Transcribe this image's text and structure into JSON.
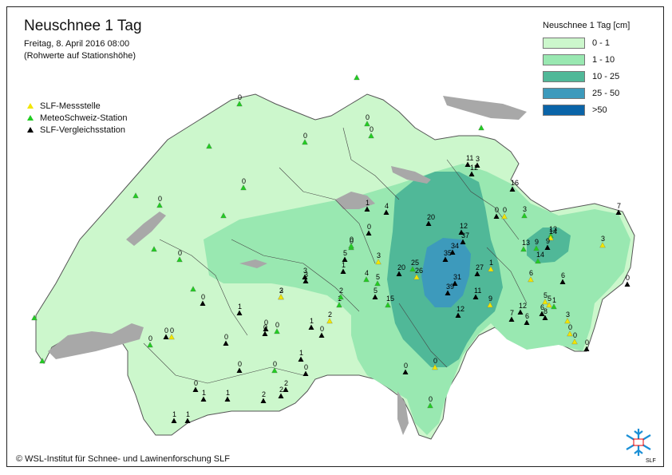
{
  "header": {
    "title": "Neuschnee 1 Tag",
    "date": "Freitag, 8. April 2016 08:00",
    "note": "(Rohwerte auf Stationshöhe)"
  },
  "station_legend": [
    {
      "label": "SLF-Messstelle",
      "color": "#f2e600"
    },
    {
      "label": "MeteoSchweiz-Station",
      "color": "#22cc22"
    },
    {
      "label": "SLF-Vergleichsstation",
      "color": "#000000"
    }
  ],
  "legend": {
    "title": "Neuschnee 1 Tag [cm]",
    "classes": [
      {
        "label": "0 - 1",
        "color": "#ccf7cc"
      },
      {
        "label": "1 - 10",
        "color": "#99e8b1"
      },
      {
        "label": "10 - 25",
        "color": "#50b898"
      },
      {
        "label": "25 - 50",
        "color": "#3d9abc"
      },
      {
        "label": ">50",
        "color": "#0a64a8"
      }
    ]
  },
  "colors": {
    "lake": "#a8a8a8",
    "border": "#444444",
    "frame": "#222222"
  },
  "stations": [
    {
      "t": "g",
      "v": "0"
    },
    {
      "t": "g",
      "v": ""
    },
    {
      "t": "g",
      "v": "0"
    },
    {
      "t": "g",
      "v": "0"
    },
    {
      "t": "g",
      "v": ""
    },
    {
      "t": "g",
      "v": ""
    },
    {
      "t": "g",
      "v": "0"
    },
    {
      "t": "g",
      "v": ""
    },
    {
      "t": "g",
      "v": "0"
    },
    {
      "t": "g",
      "v": ""
    },
    {
      "t": "g",
      "v": ""
    },
    {
      "t": "g",
      "v": "0"
    },
    {
      "t": "g",
      "v": ""
    },
    {
      "t": "g",
      "v": ""
    },
    {
      "t": "g",
      "v": ""
    },
    {
      "t": "g",
      "v": "0"
    },
    {
      "t": "b",
      "v": "11"
    },
    {
      "t": "b",
      "v": "3"
    },
    {
      "t": "b",
      "v": "12"
    },
    {
      "t": "b",
      "v": "16"
    },
    {
      "t": "b",
      "v": "7"
    },
    {
      "t": "b",
      "v": "0"
    },
    {
      "t": "y",
      "v": "0"
    },
    {
      "t": "g",
      "v": "3"
    },
    {
      "t": "b",
      "v": "4"
    },
    {
      "t": "b",
      "v": "20"
    },
    {
      "t": "b",
      "v": "12"
    },
    {
      "t": "b",
      "v": "37"
    },
    {
      "t": "b",
      "v": "34"
    },
    {
      "t": "b",
      "v": "35"
    },
    {
      "t": "g",
      "v": "13"
    },
    {
      "t": "y",
      "v": "14"
    },
    {
      "t": "b",
      "v": "9"
    },
    {
      "t": "g",
      "v": "13"
    },
    {
      "t": "g",
      "v": "9"
    },
    {
      "t": "g",
      "v": "14"
    },
    {
      "t": "y",
      "v": "3"
    },
    {
      "t": "b",
      "v": "0"
    },
    {
      "t": "g",
      "v": "0"
    },
    {
      "t": "b",
      "v": "5"
    },
    {
      "t": "b",
      "v": "1"
    },
    {
      "t": "b",
      "v": "3"
    },
    {
      "t": "g",
      "v": "4"
    },
    {
      "t": "g",
      "v": "5"
    },
    {
      "t": "b",
      "v": "20"
    },
    {
      "t": "g",
      "v": "25"
    },
    {
      "t": "y",
      "v": "26"
    },
    {
      "t": "b",
      "v": "27"
    },
    {
      "t": "y",
      "v": "1"
    },
    {
      "t": "y",
      "v": "6"
    },
    {
      "t": "b",
      "v": "6"
    },
    {
      "t": "b",
      "v": "0"
    },
    {
      "t": "y",
      "v": "3"
    },
    {
      "t": "y",
      "v": "2"
    },
    {
      "t": "b",
      "v": "5"
    },
    {
      "t": "g",
      "v": "15"
    },
    {
      "t": "b",
      "v": "31"
    },
    {
      "t": "b",
      "v": "39"
    },
    {
      "t": "b",
      "v": "11"
    },
    {
      "t": "y",
      "v": "9"
    },
    {
      "t": "y",
      "v": "5"
    },
    {
      "t": "g",
      "v": "1"
    },
    {
      "t": "b",
      "v": "6"
    },
    {
      "t": "b",
      "v": "7"
    },
    {
      "t": "b",
      "v": "12"
    },
    {
      "t": "b",
      "v": "6"
    },
    {
      "t": "b",
      "v": "8"
    },
    {
      "t": "b",
      "v": "12"
    },
    {
      "t": "y",
      "v": "3"
    },
    {
      "t": "y",
      "v": "0"
    },
    {
      "t": "y",
      "v": "0"
    },
    {
      "t": "b",
      "v": "0"
    },
    {
      "t": "b",
      "v": "0"
    },
    {
      "t": "b",
      "v": "1"
    },
    {
      "t": "b",
      "v": "0"
    },
    {
      "t": "b",
      "v": "0"
    },
    {
      "t": "g",
      "v": "0"
    },
    {
      "t": "y",
      "v": "0"
    },
    {
      "t": "g",
      "v": "0"
    },
    {
      "t": "b",
      "v": "1"
    },
    {
      "t": "b",
      "v": "0"
    },
    {
      "t": "b",
      "v": "1"
    },
    {
      "t": "b",
      "v": "0"
    },
    {
      "t": "g",
      "v": "0"
    },
    {
      "t": "b",
      "v": "2"
    },
    {
      "t": "b",
      "v": "2"
    },
    {
      "t": "b",
      "v": "2"
    },
    {
      "t": "b",
      "v": "1"
    },
    {
      "t": "b",
      "v": "1"
    },
    {
      "t": "b",
      "v": "0"
    },
    {
      "t": "b",
      "v": "1"
    },
    {
      "t": "b",
      "v": "1"
    },
    {
      "t": "g",
      "v": "0"
    },
    {
      "t": "y",
      "v": "0"
    },
    {
      "t": "b",
      "v": "0"
    },
    {
      "t": "b",
      "v": "0"
    },
    {
      "t": "g",
      "v": "1"
    },
    {
      "t": "g",
      "v": "2"
    },
    {
      "t": "b",
      "v": "3"
    },
    {
      "t": "b",
      "v": "0"
    },
    {
      "t": "y",
      "v": "2"
    },
    {
      "t": "b",
      "v": "0"
    },
    {
      "t": "y",
      "v": "3"
    },
    {
      "t": "b",
      "v": "1"
    },
    {
      "t": "g",
      "v": "0"
    },
    {
      "t": "y",
      "v": "5"
    }
  ],
  "footer": "© WSL-Institut für Schnee- und Lawinenforschung SLF",
  "logo_text": "SLF"
}
